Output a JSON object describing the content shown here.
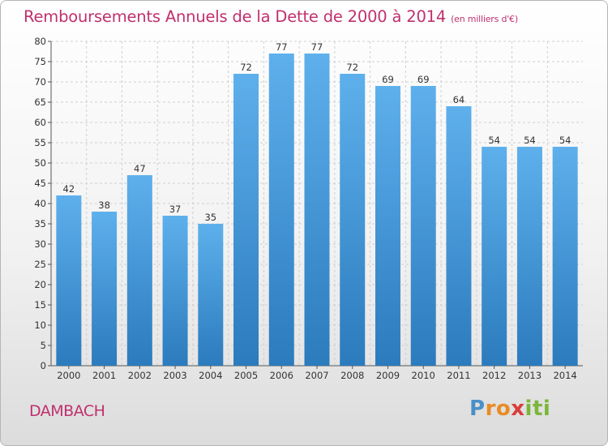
{
  "header": {
    "title": "Remboursements Annuels de la Dette de 2000 à 2014",
    "unit_note": "(en milliers d'€)"
  },
  "footer": {
    "town": "DAMBACH",
    "brand": [
      "P",
      "r",
      "o",
      "x",
      "i",
      "t",
      "i"
    ]
  },
  "colors": {
    "bar_top": "#5eb0ec",
    "bar_bottom": "#2b7bbd",
    "title": "#c0306e",
    "grid": "#cfcfcf"
  },
  "chart_data": {
    "type": "bar",
    "title": "Remboursements Annuels de la Dette de 2000 à 2014",
    "subtitle": "(en milliers d'€)",
    "xlabel": "",
    "ylabel": "",
    "categories": [
      "2000",
      "2001",
      "2002",
      "2003",
      "2004",
      "2005",
      "2006",
      "2007",
      "2008",
      "2009",
      "2010",
      "2011",
      "2012",
      "2013",
      "2014"
    ],
    "values": [
      42,
      38,
      47,
      37,
      35,
      72,
      77,
      77,
      72,
      69,
      69,
      64,
      54,
      54,
      54
    ],
    "ylim": [
      0,
      80
    ],
    "yticks": [
      0,
      5,
      10,
      15,
      20,
      25,
      30,
      35,
      40,
      45,
      50,
      55,
      60,
      65,
      70,
      75,
      80
    ],
    "grid": "horizontal dashed",
    "legend": "none"
  }
}
